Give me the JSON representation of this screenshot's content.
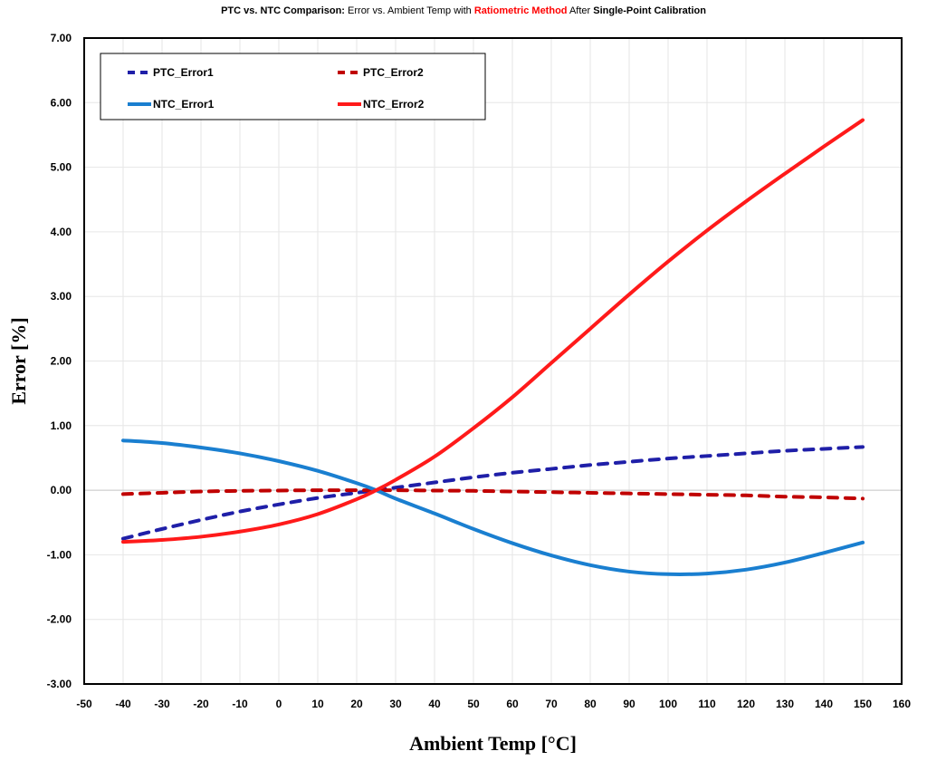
{
  "title": {
    "part1": "PTC vs. NTC Comparison:",
    "part2": "Error vs. Ambient Temp with",
    "part3": "Ratiometric Method",
    "part4": "After",
    "part5": "Single-Point Calibration"
  },
  "chart_data": {
    "type": "line",
    "xlabel": "Ambient Temp [°C]",
    "ylabel": "Error [%]",
    "xlim": [
      -50,
      160
    ],
    "ylim": [
      -3,
      7
    ],
    "x_ticks": [
      -50,
      -40,
      -30,
      -20,
      -10,
      0,
      10,
      20,
      30,
      40,
      50,
      60,
      70,
      80,
      90,
      100,
      110,
      120,
      130,
      140,
      150,
      160
    ],
    "x_tick_labels": [
      "-50",
      "-40",
      "-30",
      "-20",
      "-10",
      "0",
      "10",
      "20",
      "30",
      "40",
      "50",
      "60",
      "70",
      "80",
      "90",
      "100",
      "110",
      "120",
      "130",
      "140",
      "150",
      "160"
    ],
    "y_ticks": [
      -3,
      -2,
      -1,
      0,
      1,
      2,
      3,
      4,
      5,
      6,
      7
    ],
    "y_tick_labels": [
      "-3.00",
      "-2.00",
      "-1.00",
      "0.00",
      "1.00",
      "2.00",
      "3.00",
      "4.00",
      "5.00",
      "6.00",
      "7.00"
    ],
    "grid": true,
    "legend_position": "top-left",
    "x": [
      -40,
      -30,
      -20,
      -10,
      0,
      10,
      20,
      25,
      30,
      40,
      50,
      60,
      70,
      80,
      90,
      100,
      110,
      120,
      130,
      140,
      150
    ],
    "series": [
      {
        "name": "PTC_Error1",
        "color": "#1f1fa8",
        "dash": true,
        "values": [
          -0.75,
          -0.6,
          -0.46,
          -0.33,
          -0.22,
          -0.12,
          -0.04,
          0.0,
          0.04,
          0.12,
          0.2,
          0.27,
          0.33,
          0.39,
          0.44,
          0.49,
          0.53,
          0.57,
          0.61,
          0.64,
          0.67
        ]
      },
      {
        "name": "PTC_Error2",
        "color": "#c00000",
        "dash": true,
        "values": [
          -0.06,
          -0.04,
          -0.02,
          -0.01,
          -0.005,
          0.0,
          0.0,
          0.0,
          0.0,
          -0.005,
          -0.01,
          -0.02,
          -0.03,
          -0.04,
          -0.05,
          -0.06,
          -0.07,
          -0.08,
          -0.1,
          -0.11,
          -0.13
        ]
      },
      {
        "name": "NTC_Error1",
        "color": "#1a7fd0",
        "dash": false,
        "values": [
          0.77,
          0.73,
          0.66,
          0.57,
          0.45,
          0.3,
          0.11,
          0.0,
          -0.13,
          -0.36,
          -0.6,
          -0.82,
          -1.01,
          -1.16,
          -1.26,
          -1.3,
          -1.29,
          -1.23,
          -1.12,
          -0.97,
          -0.81
        ]
      },
      {
        "name": "NTC_Error2",
        "color": "#ff1a1a",
        "dash": false,
        "values": [
          -0.8,
          -0.77,
          -0.72,
          -0.64,
          -0.53,
          -0.37,
          -0.14,
          0.0,
          0.16,
          0.52,
          0.96,
          1.44,
          1.97,
          2.5,
          3.03,
          3.54,
          4.02,
          4.47,
          4.9,
          5.32,
          5.73
        ]
      }
    ]
  }
}
